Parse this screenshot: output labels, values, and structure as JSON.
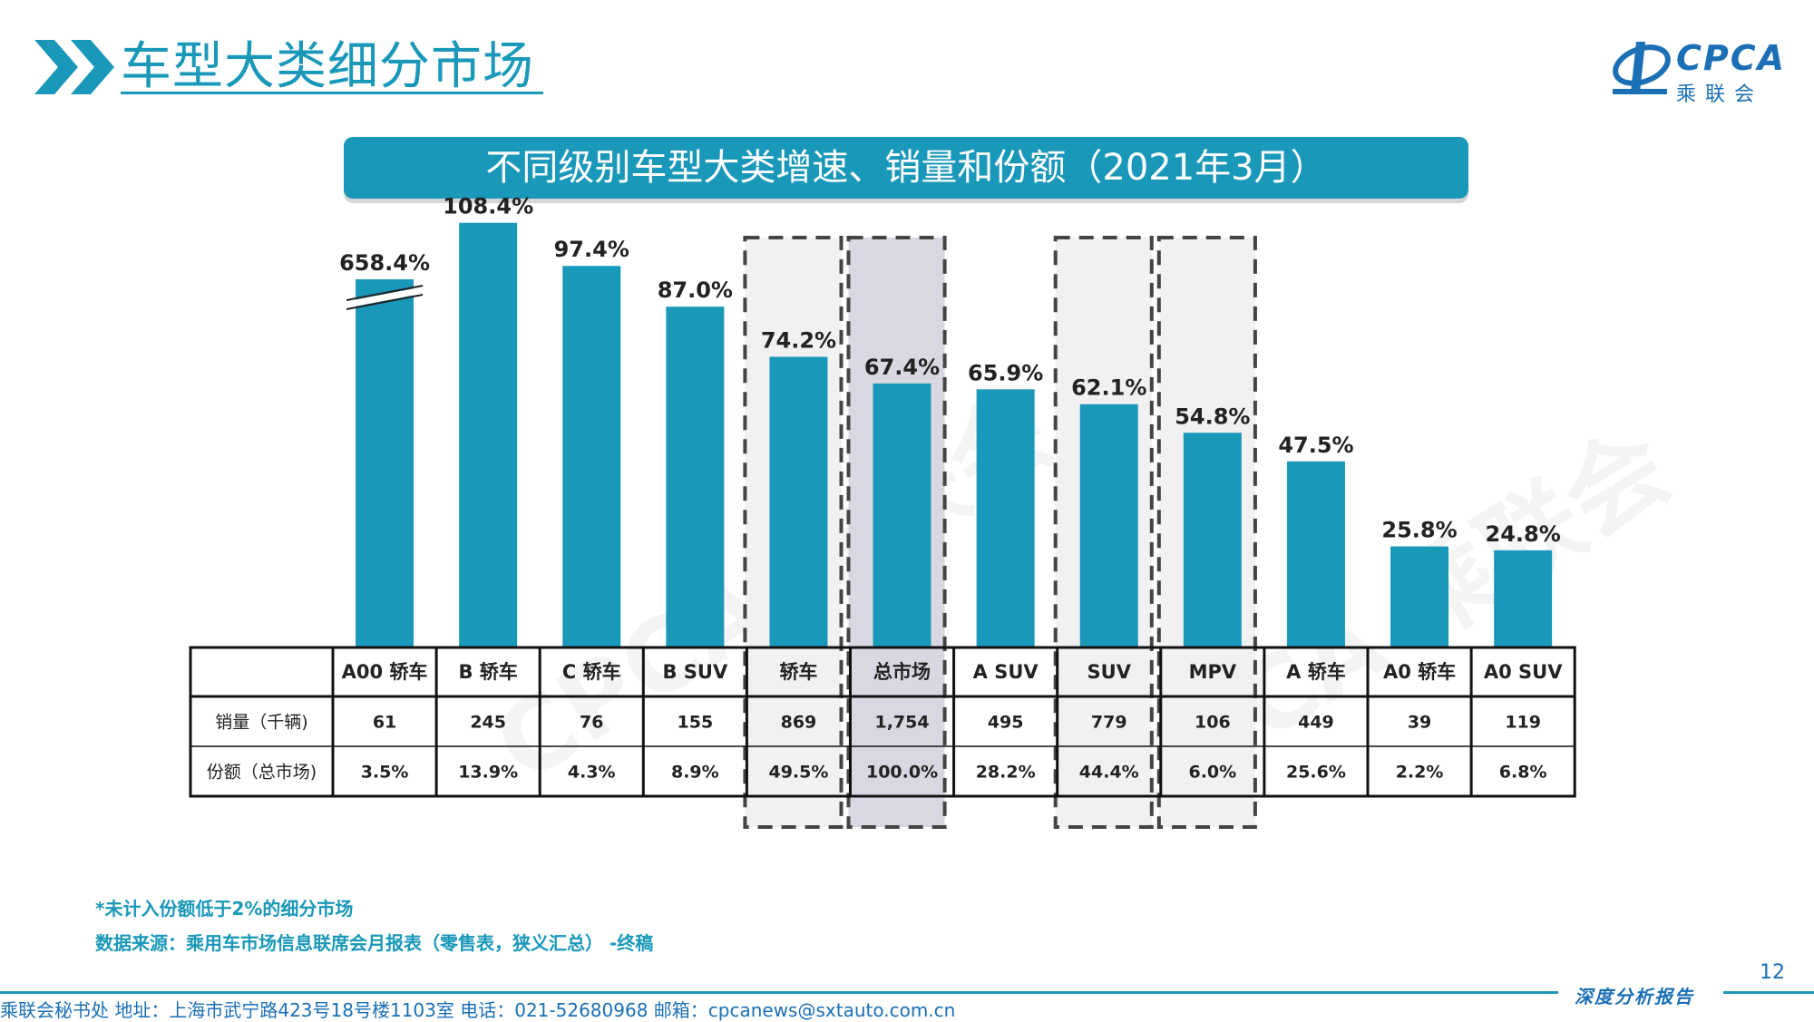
{
  "header": {
    "title": "车型大类细分市场",
    "logo_text": "CPCA",
    "logo_sub": "乘联会"
  },
  "banner": {
    "title": "不同级别车型大类增速、销量和份额（2021年3月）"
  },
  "chart_data": {
    "type": "bar",
    "categories": [
      "A00 轿车",
      "B 轿车",
      "C 轿车",
      "B SUV",
      "轿车",
      "总市场",
      "A SUV",
      "SUV",
      "MPV",
      "A 轿车",
      "A0 轿车",
      "A0 SUV"
    ],
    "values": [
      658.4,
      108.4,
      97.4,
      87.0,
      74.2,
      67.4,
      65.9,
      62.1,
      54.8,
      47.5,
      25.8,
      24.8
    ],
    "value_labels": [
      "658.4%",
      "108.4%",
      "97.4%",
      "87.0%",
      "74.2%",
      "67.4%",
      "65.9%",
      "62.1%",
      "54.8%",
      "47.5%",
      "25.8%",
      "24.8%"
    ],
    "axis_break": {
      "category_index": 0
    },
    "unit": "%",
    "highlighted_categories": [
      "轿车",
      "总市场",
      "SUV",
      "MPV"
    ],
    "bar_color": "#1a98b9",
    "table": {
      "rows": [
        {
          "label": "销量（千辆)",
          "values": [
            "61",
            "245",
            "76",
            "155",
            "869",
            "1,754",
            "495",
            "779",
            "106",
            "449",
            "39",
            "119"
          ]
        },
        {
          "label": "份额（总市场)",
          "values": [
            "3.5%",
            "13.9%",
            "4.3%",
            "8.9%",
            "49.5%",
            "100.0%",
            "28.2%",
            "44.4%",
            "6.0%",
            "25.6%",
            "2.2%",
            "6.8%"
          ]
        }
      ]
    }
  },
  "notes": {
    "line1": "*未计入份额低于2%的细分市场",
    "line2": "数据来源：乘用车市场信息联席会月报表（零售表，狭义汇总） -终稿"
  },
  "footer": {
    "contact": "乘联会秘书处   地址：上海市武宁路423号18号楼1103室  电话：021-52680968   邮箱：cpcanews@sxtauto.com.cn",
    "report_label": "深度分析报告",
    "page_number": "12"
  }
}
